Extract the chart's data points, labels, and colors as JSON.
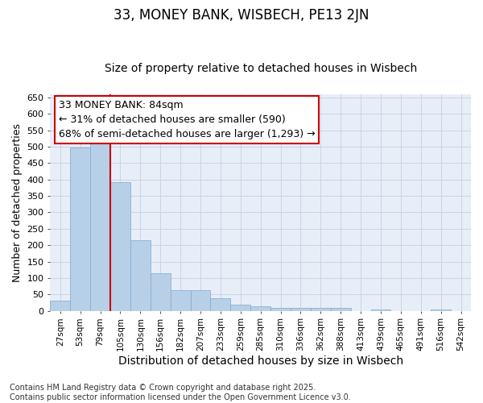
{
  "title": "33, MONEY BANK, WISBECH, PE13 2JN",
  "subtitle": "Size of property relative to detached houses in Wisbech",
  "xlabel": "Distribution of detached houses by size in Wisbech",
  "ylabel": "Number of detached properties",
  "categories": [
    "27sqm",
    "53sqm",
    "79sqm",
    "105sqm",
    "130sqm",
    "156sqm",
    "182sqm",
    "207sqm",
    "233sqm",
    "259sqm",
    "285sqm",
    "310sqm",
    "336sqm",
    "362sqm",
    "388sqm",
    "413sqm",
    "439sqm",
    "465sqm",
    "491sqm",
    "516sqm",
    "542sqm"
  ],
  "values": [
    31,
    497,
    510,
    393,
    214,
    114,
    63,
    63,
    38,
    20,
    14,
    8,
    8,
    8,
    8,
    0,
    5,
    0,
    0,
    5,
    0
  ],
  "bar_color": "#b8cfe8",
  "bar_edgecolor": "#7aaad0",
  "vline_x": 2.5,
  "vline_color": "#cc0000",
  "annotation_line1": "33 MONEY BANK: 84sqm",
  "annotation_line2": "← 31% of detached houses are smaller (590)",
  "annotation_line3": "68% of semi-detached houses are larger (1,293) →",
  "annotation_box_edgecolor": "#cc0000",
  "annotation_box_facecolor": "#ffffff",
  "ylim": [
    0,
    660
  ],
  "yticks": [
    0,
    50,
    100,
    150,
    200,
    250,
    300,
    350,
    400,
    450,
    500,
    550,
    600,
    650
  ],
  "grid_color": "#c8d4e8",
  "bg_color": "#e8eef8",
  "footer": "Contains HM Land Registry data © Crown copyright and database right 2025.\nContains public sector information licensed under the Open Government Licence v3.0.",
  "title_fontsize": 12,
  "subtitle_fontsize": 10,
  "xlabel_fontsize": 10,
  "ylabel_fontsize": 9,
  "annotation_fontsize": 9,
  "footer_fontsize": 7
}
